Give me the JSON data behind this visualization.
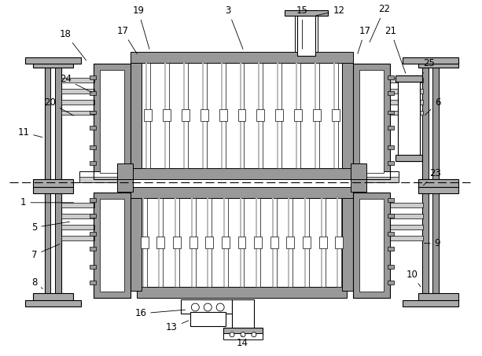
{
  "bg_color": "#ffffff",
  "fig_width": 6.13,
  "fig_height": 4.53,
  "dpi": 100,
  "gray_dark": "#888888",
  "gray_med": "#aaaaaa",
  "gray_light": "#cccccc",
  "gray_hatch": "#999999"
}
